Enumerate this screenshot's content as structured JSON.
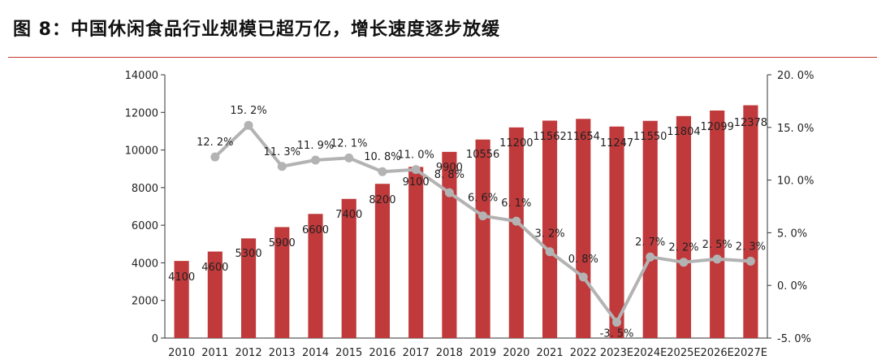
{
  "title": "图 8：中国休闲食品行业规模已超万亿，增长速度逐步放缓",
  "chart_data": {
    "type": "bar",
    "categories": [
      "2010",
      "2011",
      "2012",
      "2013",
      "2014",
      "2015",
      "2016",
      "2017",
      "2018",
      "2019",
      "2020",
      "2021",
      "2022",
      "2023E",
      "2024E",
      "2025E",
      "2026E",
      "2027E"
    ],
    "series": [
      {
        "type": "bar",
        "values": [
          4100,
          4600,
          5300,
          5900,
          6600,
          7400,
          8200,
          9100,
          9900,
          10556,
          11200,
          11562,
          11654,
          11247,
          11550,
          11804,
          12099,
          12378
        ],
        "labels": [
          "4100",
          "4600",
          "5300",
          "5900",
          "6600",
          "7400",
          "8200",
          "9100",
          "9900",
          "10556",
          "11200",
          "11562",
          "11654",
          "11247",
          "11550",
          "11804",
          "12099",
          "12378"
        ],
        "color": "#c0393b",
        "axis": "left"
      },
      {
        "type": "line",
        "values": [
          null,
          12.2,
          15.2,
          11.3,
          11.9,
          12.1,
          10.8,
          11.0,
          8.8,
          6.6,
          6.1,
          3.2,
          0.8,
          -3.5,
          2.7,
          2.2,
          2.5,
          2.3
        ],
        "labels": [
          "",
          "12. 2%",
          "15. 2%",
          "11. 3%",
          "11. 9%",
          "12. 1%",
          "10. 8%",
          "11. 0%",
          "8. 8%",
          "6. 6%",
          "6. 1%",
          "3. 2%",
          "0. 8%",
          "-3. 5%",
          "2. 7%",
          "2. 2%",
          "2. 5%",
          "2. 3%"
        ],
        "color": "#b3b3b3",
        "axis": "right"
      }
    ],
    "y_left": {
      "min": 0,
      "max": 14000,
      "ticks": [
        "0",
        "2000",
        "4000",
        "6000",
        "8000",
        "10000",
        "12000",
        "14000"
      ]
    },
    "y_right": {
      "min": -5,
      "max": 20,
      "ticks": [
        "-5. 0%",
        "0. 0%",
        "5. 0%",
        "10. 0%",
        "15. 0%",
        "20. 0%"
      ]
    },
    "grid": false,
    "legend": "none"
  }
}
